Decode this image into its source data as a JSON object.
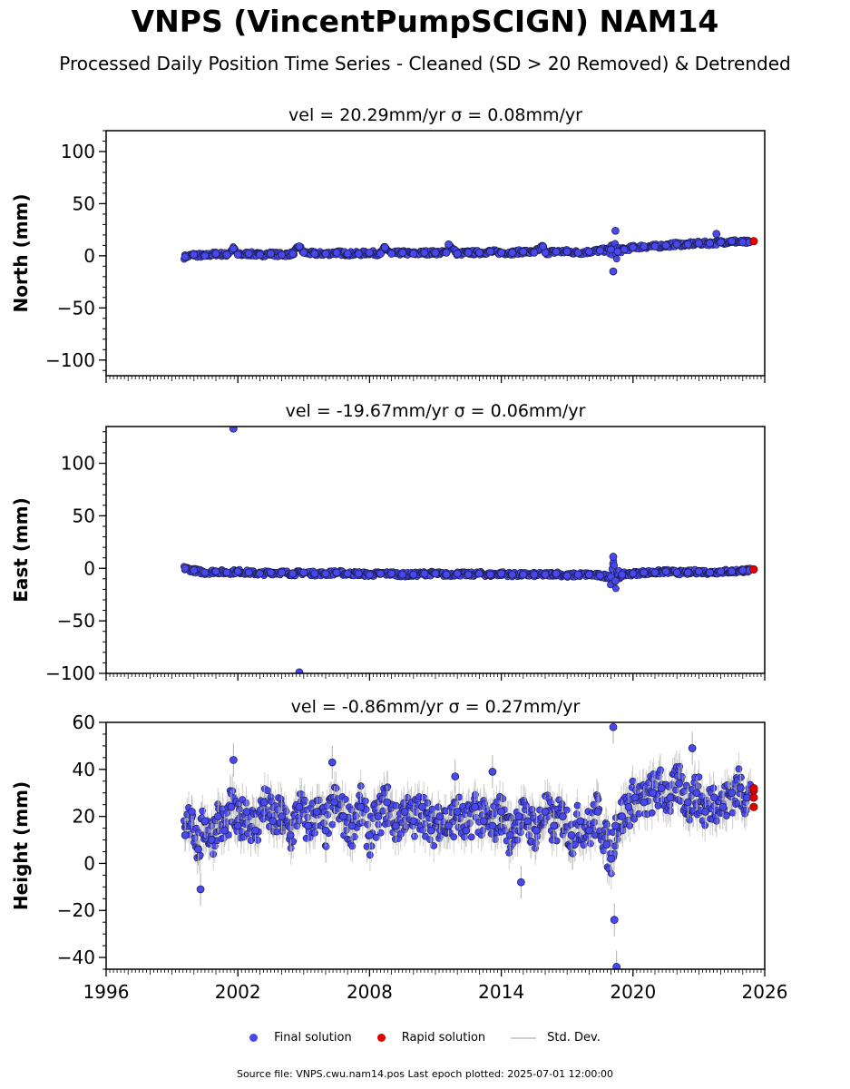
{
  "title": "VNPS (VincentPumpSCIGN) NAM14",
  "subtitle": "Processed Daily Position Time Series - Cleaned (SD > 20 Removed) & Detrended",
  "footer": "Source file: VNPS.cwu.nam14.pos  Last epoch plotted: 2025-07-01 12:00:00",
  "colors": {
    "final": "#4848f0",
    "rapid": "#e00000",
    "stddev": "#b0b0b0",
    "edge": "#1a1a40"
  },
  "chart_data": [
    {
      "type": "scatter",
      "panel": "north",
      "title": "vel = 20.29mm/yr   σ = 0.08mm/yr",
      "ylabel": "North (mm)",
      "xlim": [
        1996,
        2026
      ],
      "ylim": [
        -115,
        120
      ],
      "yticks": [
        "100",
        "50",
        "0",
        "−50",
        "−100"
      ],
      "ytick_values": [
        100,
        50,
        0,
        -50,
        -100
      ],
      "series": [
        {
          "name": "Final solution",
          "x": [
            1999.6,
            2000.0,
            2000.5,
            2001.0,
            2001.5,
            2002.0,
            2002.5,
            2003.0,
            2003.5,
            2004.0,
            2004.5,
            2005.0,
            2005.5,
            2006.0,
            2006.5,
            2007.0,
            2007.5,
            2008.0,
            2008.5,
            2009.0,
            2009.5,
            2010.0,
            2010.5,
            2011.0,
            2011.5,
            2012.0,
            2012.5,
            2013.0,
            2013.5,
            2014.0,
            2014.5,
            2015.0,
            2015.5,
            2016.0,
            2016.5,
            2017.0,
            2017.5,
            2018.0,
            2018.5,
            2019.0,
            2019.3,
            2019.6,
            2020.0,
            2020.5,
            2021.0,
            2021.5,
            2022.0,
            2022.5,
            2023.0,
            2023.5,
            2024.0,
            2024.5,
            2025.0,
            2025.3,
            2001.8,
            2004.8,
            2008.7,
            2011.6,
            2015.9,
            2019.1,
            2019.2,
            2023.8
          ],
          "y": [
            -1,
            1,
            0,
            2,
            1,
            1,
            2,
            1,
            2,
            1,
            2,
            3,
            2,
            2,
            3,
            2,
            2,
            3,
            2,
            2,
            3,
            2,
            3,
            3,
            3,
            2,
            3,
            3,
            4,
            3,
            3,
            4,
            3,
            3,
            4,
            4,
            3,
            4,
            5,
            6,
            4,
            6,
            8,
            9,
            9,
            10,
            11,
            11,
            12,
            12,
            13,
            14,
            13,
            13,
            7,
            9,
            8,
            11,
            9,
            -15,
            24,
            21
          ]
        },
        {
          "name": "Rapid solution",
          "x": [
            2025.5
          ],
          "y": [
            14
          ]
        }
      ]
    },
    {
      "type": "scatter",
      "panel": "east",
      "title": "vel = -19.67mm/yr   σ = 0.06mm/yr",
      "ylabel": "East (mm)",
      "xlim": [
        1996,
        2026
      ],
      "ylim": [
        -100,
        135
      ],
      "yticks": [
        "100",
        "50",
        "0",
        "−50",
        "−100"
      ],
      "ytick_values": [
        100,
        50,
        0,
        -50,
        -100
      ],
      "series": [
        {
          "name": "Final solution",
          "x": [
            1999.6,
            2000.0,
            2000.5,
            2001.0,
            2001.5,
            2002.0,
            2002.5,
            2003.0,
            2003.5,
            2004.0,
            2004.5,
            2005.0,
            2005.5,
            2006.0,
            2006.5,
            2007.0,
            2007.5,
            2008.0,
            2008.5,
            2009.0,
            2009.5,
            2010.0,
            2010.5,
            2011.0,
            2011.5,
            2012.0,
            2012.5,
            2013.0,
            2013.5,
            2014.0,
            2014.5,
            2015.0,
            2015.5,
            2016.0,
            2016.5,
            2017.0,
            2017.5,
            2018.0,
            2018.5,
            2019.0,
            2019.2,
            2019.5,
            2020.0,
            2020.5,
            2021.0,
            2021.5,
            2022.0,
            2022.5,
            2023.0,
            2023.5,
            2024.0,
            2024.5,
            2025.0,
            2025.3,
            2001.8,
            2004.8,
            2019.1
          ],
          "y": [
            0,
            -2,
            -4,
            -3,
            -4,
            -3,
            -4,
            -5,
            -4,
            -4,
            -5,
            -4,
            -5,
            -5,
            -4,
            -5,
            -5,
            -6,
            -5,
            -5,
            -6,
            -6,
            -5,
            -5,
            -6,
            -5,
            -6,
            -5,
            -6,
            -5,
            -6,
            -6,
            -6,
            -6,
            -5,
            -7,
            -6,
            -6,
            -7,
            -8,
            -12,
            -6,
            -5,
            -4,
            -4,
            -3,
            -4,
            -4,
            -3,
            -4,
            -3,
            -3,
            -2,
            -2,
            133,
            -99,
            11
          ]
        },
        {
          "name": "Rapid solution",
          "x": [
            2025.5
          ],
          "y": [
            -1
          ]
        }
      ]
    },
    {
      "type": "scatter",
      "panel": "height",
      "title": "vel = -0.86mm/yr   σ = 0.27mm/yr",
      "ylabel": "Height (mm)",
      "xlim": [
        1996,
        2026
      ],
      "ylim": [
        -45,
        60
      ],
      "yticks": [
        "60",
        "40",
        "20",
        "0",
        "−20",
        "−40"
      ],
      "ytick_values": [
        60,
        40,
        20,
        0,
        -20,
        -40
      ],
      "xticks": [
        "1996",
        "2002",
        "2008",
        "2014",
        "2020",
        "2026"
      ],
      "xtick_values": [
        1996,
        2002,
        2008,
        2014,
        2020,
        2026
      ],
      "series": [
        {
          "name": "Final solution",
          "x": [
            1999.6,
            1999.9,
            2000.2,
            2000.5,
            2000.8,
            2001.1,
            2001.4,
            2001.7,
            2002.0,
            2002.4,
            2002.8,
            2003.2,
            2003.6,
            2004.0,
            2004.4,
            2004.8,
            2005.2,
            2005.6,
            2006.0,
            2006.4,
            2006.8,
            2007.2,
            2007.6,
            2008.0,
            2008.4,
            2008.8,
            2009.2,
            2009.6,
            2010.0,
            2010.4,
            2010.8,
            2011.2,
            2011.6,
            2012.0,
            2012.4,
            2012.8,
            2013.2,
            2013.6,
            2014.0,
            2014.4,
            2014.8,
            2015.2,
            2015.6,
            2016.0,
            2016.4,
            2016.8,
            2017.2,
            2017.6,
            2018.0,
            2018.4,
            2018.8,
            2019.0,
            2019.2,
            2019.5,
            2019.8,
            2020.1,
            2020.5,
            2020.9,
            2021.3,
            2021.7,
            2022.1,
            2022.5,
            2022.9,
            2023.3,
            2023.7,
            2024.1,
            2024.5,
            2024.9,
            2025.2,
            2000.3,
            2001.8,
            2006.3,
            2011.9,
            2013.6,
            2014.9,
            2019.1,
            2019.15,
            2019.25,
            2022.7
          ],
          "y": [
            12,
            22,
            6,
            18,
            10,
            20,
            14,
            24,
            16,
            22,
            14,
            26,
            18,
            20,
            12,
            24,
            16,
            22,
            14,
            26,
            20,
            16,
            24,
            12,
            20,
            26,
            16,
            22,
            18,
            24,
            14,
            20,
            16,
            22,
            14,
            24,
            18,
            16,
            22,
            12,
            20,
            18,
            14,
            22,
            16,
            20,
            12,
            18,
            14,
            22,
            8,
            2,
            16,
            20,
            24,
            28,
            26,
            30,
            32,
            28,
            34,
            26,
            30,
            22,
            28,
            24,
            30,
            32,
            28,
            -11,
            44,
            43,
            37,
            39,
            -8,
            58,
            -24,
            -44,
            49
          ]
        },
        {
          "name": "Rapid solution",
          "x": [
            2025.5,
            2025.5,
            2025.5,
            2025.5
          ],
          "y": [
            24,
            28,
            31,
            32
          ]
        }
      ]
    }
  ],
  "legend": [
    {
      "label": "Final solution",
      "kind": "dot",
      "color": "#4848f0"
    },
    {
      "label": "Rapid solution",
      "kind": "dot",
      "color": "#e00000"
    },
    {
      "label": "Std. Dev.",
      "kind": "line",
      "color": "#d0d0d0"
    }
  ]
}
